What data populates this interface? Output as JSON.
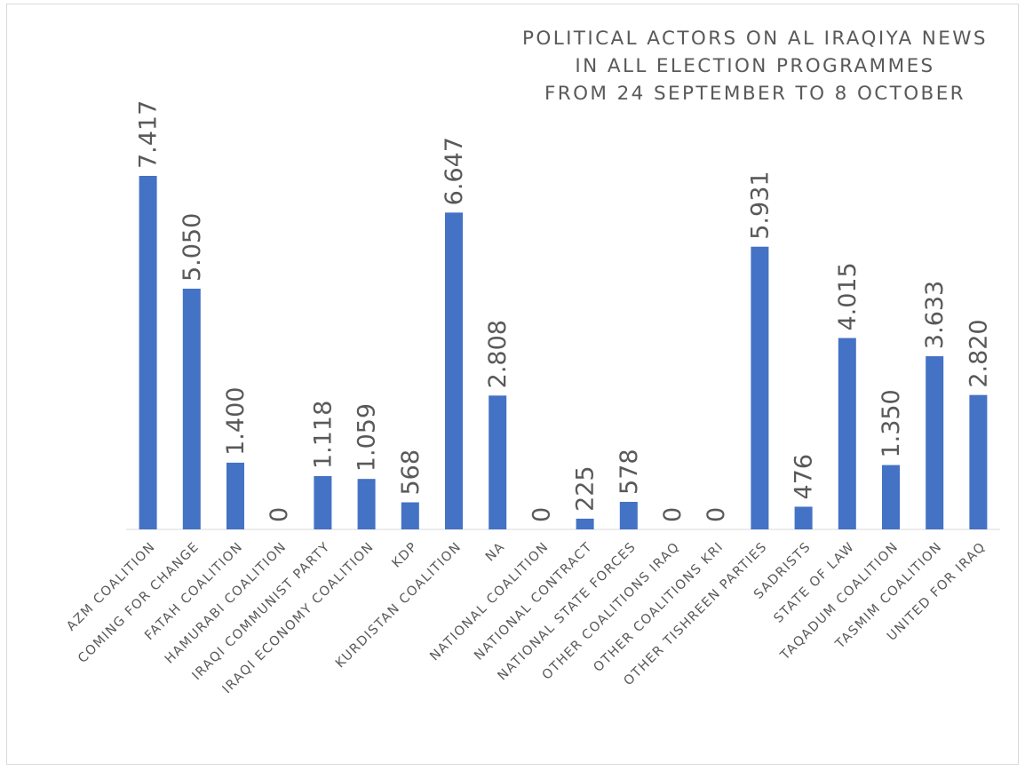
{
  "chart_data": {
    "type": "bar",
    "title": [
      "POLITICAL ACTORS ON AL IRAQIYA NEWS",
      "IN ALL ELECTION PROGRAMMES",
      "FROM 24 SEPTEMBER TO 8 OCTOBER"
    ],
    "categories": [
      "AZM COALITION",
      "COMING FOR CHANGE",
      "FATAH COALITION",
      "HAMURABI COALITION",
      "IRAQI COMMUNIST PARTY",
      "IRAQI ECONOMY COALITION",
      "KDP",
      "KURDISTAN COALITION",
      "NA",
      "NATIONAL COALITION",
      "NATIONAL CONTRACT",
      "NATIONAL STATE FORCES",
      "OTHER COALITIONS IRAQ",
      "OTHER COALITIONS KRI",
      "OTHER TISHREEN PARTIES",
      "SADRISTS",
      "STATE OF LAW",
      "TAQADUM COALITION",
      "TASMIM COALITION",
      "UNITED FOR IRAQ"
    ],
    "values": [
      7417,
      5050,
      1400,
      0,
      1118,
      1059,
      568,
      6647,
      2808,
      0,
      225,
      578,
      0,
      0,
      5931,
      476,
      4015,
      1350,
      3633,
      2820
    ],
    "data_labels": [
      "7.417",
      "5.050",
      "1.400",
      "0",
      "1.118",
      "1.059",
      "568",
      "6.647",
      "2.808",
      "0",
      "225",
      "578",
      "0",
      "0",
      "5.931",
      "476",
      "4.015",
      "1.350",
      "3.633",
      "2.820"
    ],
    "xlabel": "",
    "ylabel": "",
    "ylim": [
      0,
      8000
    ],
    "grid": false,
    "legend": "none",
    "bar_color": "#4472c4",
    "text_color": "#595959",
    "axis_color": "#d9d9d9"
  }
}
